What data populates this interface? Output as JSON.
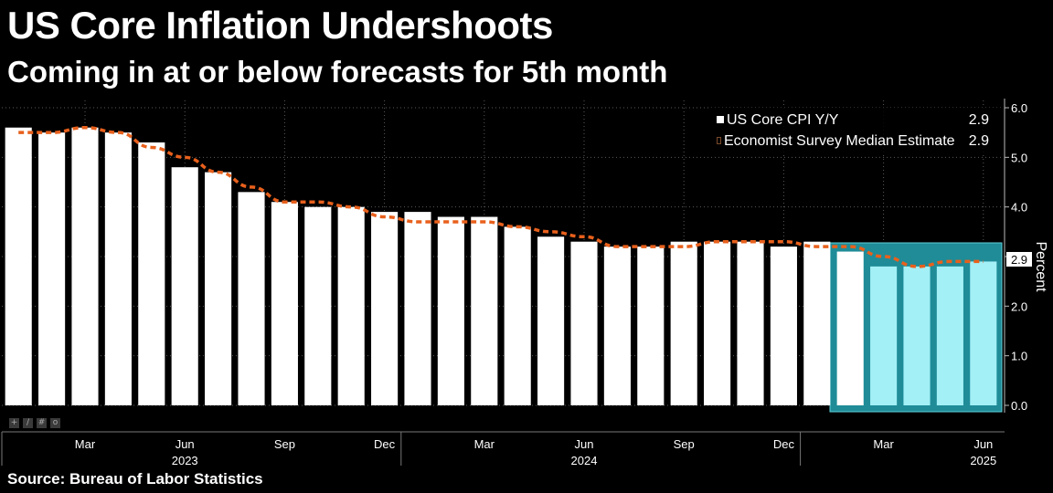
{
  "title": "US Core Inflation Undershoots",
  "subtitle": "Coming in at or below forecasts for 5th month",
  "source": "Source: Bureau of Labor Statistics",
  "colors": {
    "background": "#000000",
    "bars": "#ffffff",
    "highlight_bars": "#a3f0f7",
    "highlight_box": "#1f8c98",
    "dashed_line": "#e8601c",
    "gridlines": "#5a5a5a"
  },
  "icons": [
    "crosshair-icon",
    "pencil-icon",
    "grid-icon",
    "zoom-icon"
  ],
  "chart_data": {
    "type": "bar",
    "title": "US Core Inflation Undershoots",
    "subtitle": "Coming in at or below forecasts for 5th month",
    "ylabel": "Percent",
    "ylim": [
      0,
      6
    ],
    "y_ticks": [
      "0.0",
      "1.0",
      "2.0",
      "3.0",
      "4.0",
      "5.0",
      "6.0"
    ],
    "grid": true,
    "legend_position": "top-right",
    "x_tick_labels": [
      {
        "label": "Mar",
        "index": 2
      },
      {
        "label": "Jun",
        "index": 5
      },
      {
        "label": "Sep",
        "index": 8
      },
      {
        "label": "Dec",
        "index": 11
      },
      {
        "label": "Mar",
        "index": 14
      },
      {
        "label": "Jun",
        "index": 17
      },
      {
        "label": "Sep",
        "index": 20
      },
      {
        "label": "Dec",
        "index": 23
      },
      {
        "label": "Mar",
        "index": 26
      },
      {
        "label": "Jun",
        "index": 29
      }
    ],
    "year_labels": [
      {
        "label": "2023",
        "index": 5
      },
      {
        "label": "2024",
        "index": 17
      },
      {
        "label": "2025",
        "index": 29
      }
    ],
    "categories": [
      "Jan 2023",
      "Feb 2023",
      "Mar 2023",
      "Apr 2023",
      "May 2023",
      "Jun 2023",
      "Jul 2023",
      "Aug 2023",
      "Sep 2023",
      "Oct 2023",
      "Nov 2023",
      "Dec 2023",
      "Jan 2024",
      "Feb 2024",
      "Mar 2024",
      "Apr 2024",
      "May 2024",
      "Jun 2024",
      "Jul 2024",
      "Aug 2024",
      "Sep 2024",
      "Oct 2024",
      "Nov 2024",
      "Dec 2024",
      "Jan 2025",
      "Feb 2025",
      "Mar 2025",
      "Apr 2025",
      "May 2025",
      "Jun 2025"
    ],
    "series": [
      {
        "name": "US Core CPI Y/Y",
        "last_value": "2.9",
        "values": [
          5.6,
          5.5,
          5.6,
          5.5,
          5.3,
          4.8,
          4.7,
          4.3,
          4.1,
          4.0,
          4.0,
          3.9,
          3.9,
          3.8,
          3.8,
          3.6,
          3.4,
          3.3,
          3.2,
          3.2,
          3.3,
          3.3,
          3.3,
          3.2,
          3.3,
          3.1,
          2.8,
          2.8,
          2.8,
          2.9
        ],
        "highlighted_range": [
          25,
          29
        ]
      },
      {
        "name": "Economist Survey Median Estimate",
        "last_value": "2.9",
        "style": "dashed",
        "values": [
          5.5,
          5.5,
          5.6,
          5.5,
          5.2,
          5.0,
          4.7,
          4.4,
          4.1,
          4.1,
          4.0,
          3.8,
          3.7,
          3.7,
          3.7,
          3.6,
          3.5,
          3.4,
          3.2,
          3.2,
          3.2,
          3.3,
          3.3,
          3.3,
          3.2,
          3.2,
          3.0,
          2.8,
          2.9,
          2.9
        ]
      }
    ],
    "last_value_label": "2.9"
  }
}
